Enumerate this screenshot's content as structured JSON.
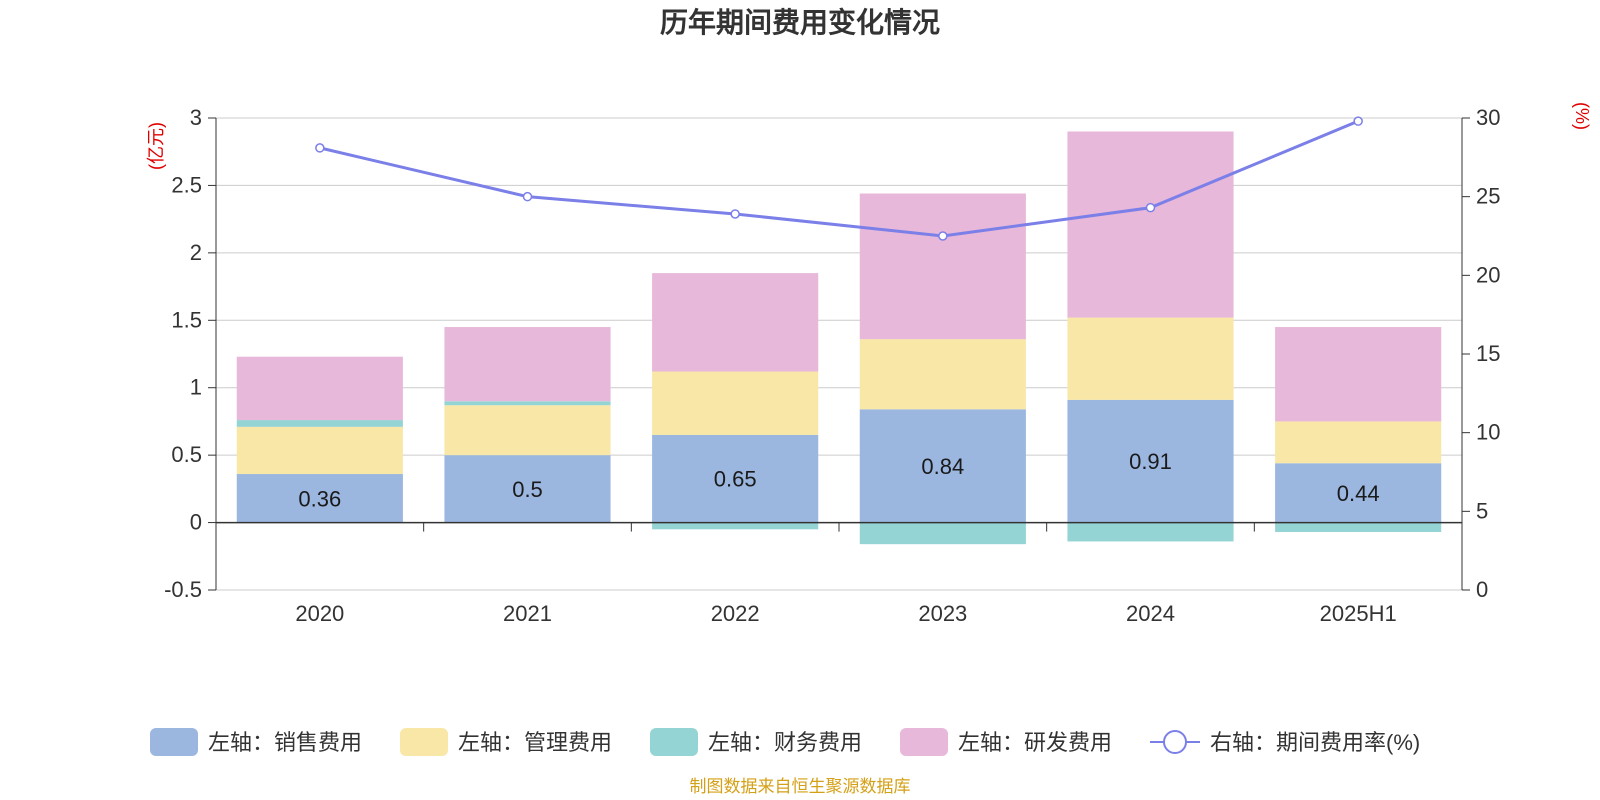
{
  "chart_data": {
    "type": "bar",
    "title": "历年期间费用变化情况",
    "left_unit": "(亿元)",
    "right_unit": "(%)",
    "categories": [
      "2020",
      "2021",
      "2022",
      "2023",
      "2024",
      "2025H1"
    ],
    "left_ylim": [
      -0.5,
      3
    ],
    "left_ticks": [
      "3",
      "2.5",
      "2",
      "1.5",
      "1",
      "0.5",
      "0",
      "-0.5"
    ],
    "right_ylim": [
      0,
      30
    ],
    "right_ticks": [
      "30",
      "25",
      "20",
      "15",
      "10",
      "5",
      "0"
    ],
    "grid": true,
    "legend_position": "bottom",
    "series": [
      {
        "name": "左轴：销售费用",
        "type": "bar",
        "color": "#9bb7e0",
        "values": [
          0.36,
          0.5,
          0.65,
          0.84,
          0.91,
          0.44
        ],
        "labels": [
          "0.36",
          "0.5",
          "0.65",
          "0.84",
          "0.91",
          "0.44"
        ]
      },
      {
        "name": "左轴：管理费用",
        "type": "bar",
        "color": "#f8e7a6",
        "values": [
          0.35,
          0.37,
          0.47,
          0.52,
          0.61,
          0.31
        ]
      },
      {
        "name": "左轴：财务费用",
        "type": "bar",
        "color": "#95d4d4",
        "values": [
          0.05,
          0.03,
          -0.05,
          -0.16,
          -0.14,
          -0.07
        ]
      },
      {
        "name": "左轴：研发费用",
        "type": "bar",
        "color": "#e8b8da",
        "values": [
          0.47,
          0.55,
          0.73,
          1.08,
          1.38,
          0.7
        ]
      },
      {
        "name": "右轴：期间费用率(%)",
        "type": "line",
        "color": "#7b7fe8",
        "values": [
          28.1,
          25.0,
          23.9,
          22.5,
          24.3,
          29.8
        ]
      }
    ],
    "footer": "制图数据来自恒生聚源数据库"
  }
}
